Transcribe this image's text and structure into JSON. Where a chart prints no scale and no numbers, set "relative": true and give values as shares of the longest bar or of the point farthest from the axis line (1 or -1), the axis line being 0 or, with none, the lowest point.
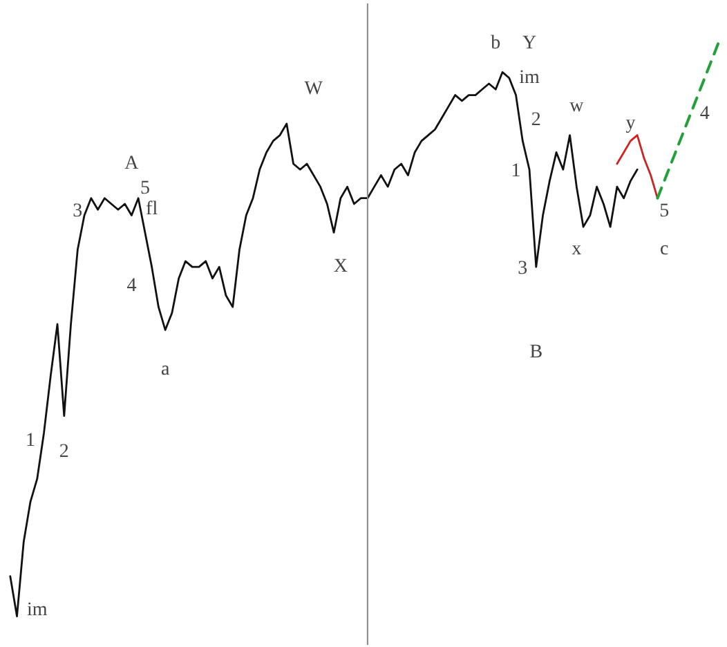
{
  "chart_data": {
    "type": "line",
    "relative": true,
    "tick_labels": false,
    "grid": false,
    "categories": [
      null,
      null,
      null,
      null,
      null,
      null,
      null,
      null,
      null,
      null,
      null,
      null,
      null,
      null,
      null,
      null,
      null,
      null,
      null,
      null,
      null,
      null,
      null,
      null,
      null,
      null,
      null,
      null,
      null,
      null,
      null,
      null,
      null,
      null,
      null,
      null,
      null,
      null,
      null,
      null,
      null,
      null,
      null,
      null,
      null,
      null,
      null,
      null,
      null,
      null,
      null,
      null,
      null,
      null,
      null,
      null,
      null,
      null,
      null,
      null,
      null,
      null,
      null,
      null,
      null,
      null,
      null,
      null,
      null,
      null,
      null,
      null,
      null,
      null,
      null,
      null,
      null,
      null,
      null,
      null,
      null,
      null,
      null,
      null,
      null,
      null,
      null,
      null,
      null,
      null,
      null,
      null,
      null,
      null,
      null,
      null,
      null,
      null,
      null,
      null,
      null,
      null,
      null,
      null,
      null,
      null
    ],
    "series": [
      {
        "color": "#111111",
        "values": [
          0.07,
          0.0,
          0.13,
          0.2,
          0.24,
          0.32,
          0.42,
          0.51,
          0.35,
          0.51,
          0.64,
          0.7,
          0.73,
          0.71,
          0.73,
          0.72,
          0.71,
          0.72,
          0.7,
          0.73,
          0.67,
          0.61,
          0.54,
          0.5,
          0.53,
          0.59,
          0.62,
          0.61,
          0.61,
          0.62,
          0.59,
          0.61,
          0.56,
          0.54,
          0.64,
          0.7,
          0.73,
          0.78,
          0.81,
          0.83,
          0.84,
          0.86,
          0.79,
          0.78,
          0.79,
          0.77,
          0.75,
          0.72,
          0.67,
          0.73,
          0.75,
          0.72,
          0.73,
          0.73,
          0.75,
          0.77,
          0.75,
          0.78,
          0.79,
          0.77,
          0.81,
          0.83,
          0.84,
          0.85,
          0.87,
          0.89,
          0.91,
          0.9,
          0.91,
          0.91,
          0.92,
          0.93,
          0.92,
          0.95,
          0.94,
          0.91,
          0.83,
          0.78,
          0.61,
          0.7,
          0.76,
          0.81,
          0.78,
          0.84,
          0.75,
          0.68,
          0.7,
          0.75,
          0.72,
          0.68,
          0.75,
          0.73,
          0.76,
          0.78,
          null,
          null,
          null,
          null,
          null,
          null,
          null,
          null,
          null,
          null,
          null,
          null
        ]
      },
      {
        "color": "#cc2222",
        "values": [
          null,
          null,
          null,
          null,
          null,
          null,
          null,
          null,
          null,
          null,
          null,
          null,
          null,
          null,
          null,
          null,
          null,
          null,
          null,
          null,
          null,
          null,
          null,
          null,
          null,
          null,
          null,
          null,
          null,
          null,
          null,
          null,
          null,
          null,
          null,
          null,
          null,
          null,
          null,
          null,
          null,
          null,
          null,
          null,
          null,
          null,
          null,
          null,
          null,
          null,
          null,
          null,
          null,
          null,
          null,
          null,
          null,
          null,
          null,
          null,
          null,
          null,
          null,
          null,
          null,
          null,
          null,
          null,
          null,
          null,
          null,
          null,
          null,
          null,
          null,
          null,
          null,
          null,
          null,
          null,
          null,
          null,
          null,
          null,
          null,
          null,
          null,
          null,
          null,
          null,
          0.79,
          0.81,
          0.83,
          0.84,
          0.8,
          0.77,
          0.73,
          null,
          null,
          null,
          null,
          null,
          null,
          null,
          null,
          null
        ]
      },
      {
        "color": "#22a03a",
        "line_style": "dashed",
        "values": [
          null,
          null,
          null,
          null,
          null,
          null,
          null,
          null,
          null,
          null,
          null,
          null,
          null,
          null,
          null,
          null,
          null,
          null,
          null,
          null,
          null,
          null,
          null,
          null,
          null,
          null,
          null,
          null,
          null,
          null,
          null,
          null,
          null,
          null,
          null,
          null,
          null,
          null,
          null,
          null,
          null,
          null,
          null,
          null,
          null,
          null,
          null,
          null,
          null,
          null,
          null,
          null,
          null,
          null,
          null,
          null,
          null,
          null,
          null,
          null,
          null,
          null,
          null,
          null,
          null,
          null,
          null,
          null,
          null,
          null,
          null,
          null,
          null,
          null,
          null,
          null,
          null,
          null,
          null,
          null,
          null,
          null,
          null,
          null,
          null,
          null,
          null,
          null,
          null,
          null,
          null,
          null,
          null,
          null,
          null,
          null,
          0.73,
          0.76,
          0.79,
          0.82,
          0.85,
          0.88,
          0.91,
          0.94,
          0.97,
          1.0
        ]
      }
    ],
    "annotations": [
      "im",
      "1",
      "2",
      "3",
      "A",
      "5",
      "fl",
      "4",
      "a",
      "W",
      "X",
      "b",
      "Y",
      "im",
      "2",
      "1",
      "w",
      "3",
      "x",
      "B",
      "y",
      "4",
      "5",
      "c"
    ]
  }
}
